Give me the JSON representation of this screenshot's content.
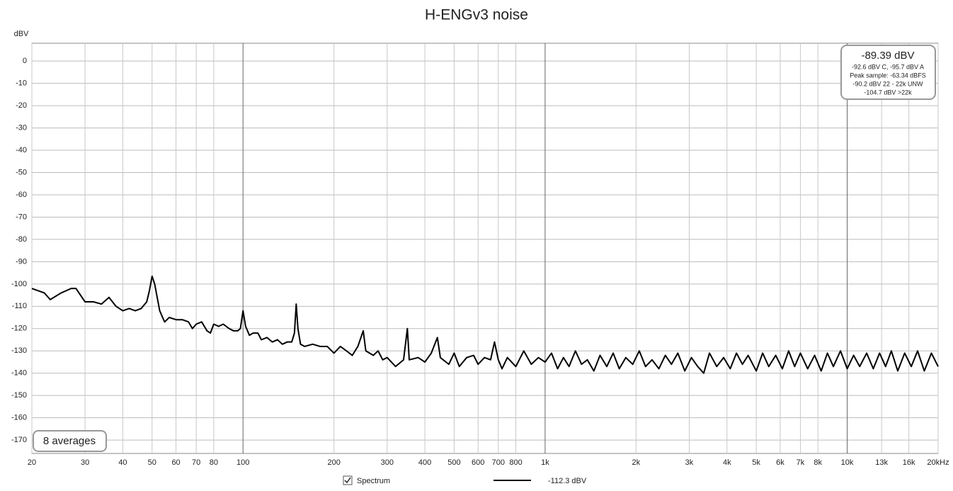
{
  "chart_data": {
    "type": "line",
    "title": "H-ENGv3 noise",
    "y_label": "dBV",
    "xscale": "log",
    "grid": true,
    "xlim": [
      20,
      20000
    ],
    "ylim": [
      -176,
      8
    ],
    "xticks": [
      20,
      30,
      40,
      50,
      60,
      70,
      80,
      100,
      200,
      300,
      400,
      500,
      600,
      700,
      800,
      {
        "value": 1000,
        "label": "1k"
      },
      {
        "value": 2000,
        "label": "2k"
      },
      {
        "value": 3000,
        "label": "3k"
      },
      {
        "value": 4000,
        "label": "4k"
      },
      {
        "value": 5000,
        "label": "5k"
      },
      {
        "value": 6000,
        "label": "6k"
      },
      {
        "value": 7000,
        "label": "7k"
      },
      {
        "value": 8000,
        "label": "8k"
      },
      {
        "value": 10000,
        "label": "10k"
      },
      {
        "value": 13000,
        "label": "13k"
      },
      {
        "value": 16000,
        "label": "16k"
      },
      {
        "value": 20000,
        "label": "20kHz"
      }
    ],
    "yticks": [
      0,
      -10,
      -20,
      -30,
      -40,
      -50,
      -60,
      -70,
      -80,
      -90,
      -100,
      -110,
      -120,
      -130,
      -140,
      -150,
      -160,
      -170
    ],
    "x": [
      20,
      22,
      23,
      25,
      27,
      28,
      30,
      32,
      34,
      36,
      38,
      40,
      42,
      44,
      46,
      48,
      49,
      50,
      51,
      53,
      55,
      57,
      60,
      63,
      66,
      68,
      70,
      73,
      76,
      78,
      80,
      83,
      86,
      90,
      93,
      96,
      98,
      100,
      102,
      105,
      108,
      112,
      115,
      120,
      125,
      130,
      135,
      140,
      145,
      148,
      150,
      152,
      155,
      160,
      170,
      180,
      190,
      200,
      210,
      220,
      230,
      240,
      250,
      255,
      270,
      280,
      290,
      300,
      320,
      340,
      350,
      355,
      380,
      400,
      420,
      440,
      450,
      480,
      500,
      520,
      550,
      580,
      600,
      630,
      660,
      680,
      700,
      720,
      750,
      800,
      850,
      900,
      950,
      1000,
      1050,
      1100,
      1150,
      1200,
      1260,
      1320,
      1380,
      1450,
      1520,
      1600,
      1680,
      1760,
      1850,
      1950,
      2050,
      2150,
      2260,
      2380,
      2500,
      2620,
      2750,
      2900,
      3050,
      3200,
      3350,
      3500,
      3700,
      3900,
      4100,
      4300,
      4500,
      4700,
      5000,
      5250,
      5500,
      5800,
      6100,
      6400,
      6700,
      7000,
      7400,
      7800,
      8200,
      8600,
      9000,
      9500,
      10000,
      10500,
      11000,
      11600,
      12200,
      12800,
      13400,
      14000,
      14700,
      15500,
      16300,
      17100,
      18000,
      19000,
      20000
    ],
    "series": [
      {
        "name": "Spectrum",
        "color": "#000000",
        "values": [
          -102,
          -104,
          -107,
          -104,
          -102,
          -102,
          -108,
          -108,
          -109,
          -106,
          -110,
          -112,
          -111,
          -112,
          -111,
          -108,
          -103,
          -96.5,
          -100,
          -112,
          -117,
          -115,
          -116,
          -116,
          -117,
          -120,
          -118,
          -117,
          -121,
          -122,
          -118,
          -119,
          -118,
          -120,
          -121,
          -121,
          -120,
          -112,
          -119,
          -123,
          -122,
          -122,
          -125,
          -124,
          -126,
          -125,
          -127,
          -126,
          -126,
          -122,
          -109,
          -120,
          -127,
          -128,
          -127,
          -128,
          -128,
          -131,
          -128,
          -130,
          -132,
          -128,
          -121,
          -130,
          -132,
          -130,
          -134,
          -133,
          -137,
          -134,
          -120,
          -134,
          -133,
          -135,
          -131,
          -124,
          -133,
          -136,
          -131,
          -137,
          -133,
          -132,
          -136,
          -133,
          -134,
          -126,
          -134,
          -138,
          -133,
          -137,
          -130,
          -136,
          -133,
          -135,
          -131,
          -138,
          -133,
          -137,
          -130,
          -136,
          -134,
          -139,
          -132,
          -137,
          -131,
          -138,
          -133,
          -136,
          -130,
          -137,
          -134,
          -138,
          -132,
          -136,
          -131,
          -139,
          -133,
          -137,
          -140,
          -131,
          -137,
          -133,
          -138,
          -131,
          -136,
          -132,
          -139,
          -131,
          -137,
          -132,
          -138,
          -130,
          -137,
          -131,
          -138,
          -132,
          -139,
          -131,
          -137,
          -130,
          -138,
          -132,
          -137,
          -131,
          -138,
          -131,
          -137,
          -130,
          -139,
          -131,
          -137,
          -130,
          -139,
          -131,
          -137
        ]
      }
    ],
    "legend_value": "-112.3 dBV",
    "averages_label": "8 averages",
    "info": {
      "main": "-89.39 dBV",
      "lines": [
        "-92.6 dBV C, -95.7 dBV A",
        "Peak sample: -63.34 dBFS",
        "-90.2 dBV 22 - 22k UNW",
        "-104.7 dBV >22k"
      ]
    }
  }
}
